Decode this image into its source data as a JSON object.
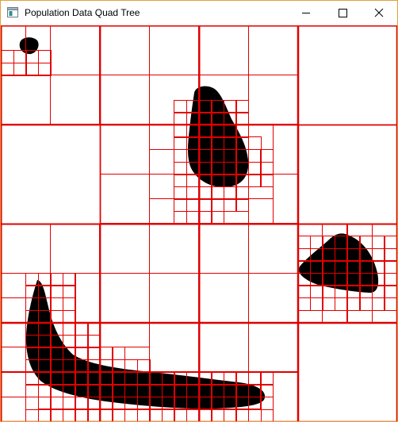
{
  "window": {
    "title": "Population Data Quad Tree",
    "icon": "app-window-icon",
    "controls": {
      "minimize": "minimize-icon",
      "maximize": "maximize-icon",
      "close": "close-icon"
    }
  },
  "colors": {
    "grid_line": "#e00000",
    "population_blob": "#000000",
    "background": "#ffffff",
    "window_border": "#e3a042"
  }
}
